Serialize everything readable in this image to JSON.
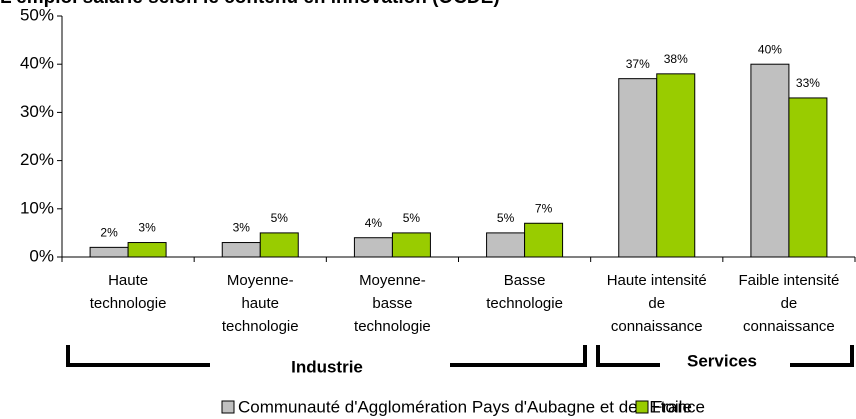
{
  "chart_data": {
    "type": "bar",
    "title": "L'emploi salarié selon le contenu en innovation (OCDE)",
    "categories": [
      [
        "Haute",
        "technologie"
      ],
      [
        "Moyenne-",
        "haute",
        "technologie"
      ],
      [
        "Moyenne-",
        "basse",
        "technologie"
      ],
      [
        "Basse",
        "technologie"
      ],
      [
        "Haute intensité",
        "de",
        "connaissance"
      ],
      [
        "Faible intensité",
        "de",
        "connaissance"
      ]
    ],
    "groups": [
      "Industrie",
      "Services"
    ],
    "series": [
      {
        "name": "Communauté d'Agglomération Pays d'Aubagne et de l'Etoile",
        "color": "#c0c0c0",
        "values": [
          2,
          3,
          4,
          5,
          37,
          40
        ],
        "value_labels": [
          "2%",
          "3%",
          "4%",
          "5%",
          "37%",
          "40%"
        ]
      },
      {
        "name": "France",
        "color": "#99cc00",
        "values": [
          3,
          5,
          5,
          7,
          38,
          33
        ],
        "value_labels": [
          "3%",
          "5%",
          "5%",
          "7%",
          "38%",
          "33%"
        ]
      }
    ],
    "ylim": [
      0,
      50
    ],
    "yticks": [
      {
        "value": 0,
        "label": "0%"
      },
      {
        "value": 10,
        "label": "10%"
      },
      {
        "value": 20,
        "label": "20%"
      },
      {
        "value": 30,
        "label": "30%"
      },
      {
        "value": 40,
        "label": "40%"
      },
      {
        "value": 50,
        "label": "50%"
      }
    ],
    "grid": false
  }
}
